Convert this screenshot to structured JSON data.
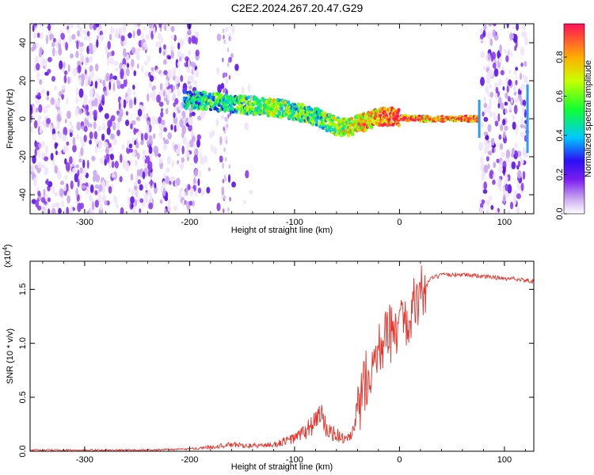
{
  "title": "C2E2.2024.267.20.47.G29",
  "colors": {
    "snr_line": "#e8322a",
    "axis": "#000000"
  },
  "chart_data": [
    {
      "type": "heatmap",
      "xlabel": "Height of straight line (km)",
      "ylabel": "Frequency (Hz)",
      "xlim": [
        -352,
        128
      ],
      "ylim": [
        -50,
        50
      ],
      "x_ticks": [
        -300,
        -200,
        -100,
        0,
        100
      ],
      "y_ticks": [
        -40,
        -20,
        0,
        20,
        40
      ],
      "colorbar": {
        "label": "Normalized spectral amplitude",
        "range": [
          0.0,
          0.97
        ],
        "ticks": [
          "0.0",
          "0.2",
          "0.4",
          "0.6",
          "0.8"
        ],
        "tick_values": [
          0.0,
          0.2,
          0.4,
          0.6,
          0.8
        ]
      },
      "noise_regions": [
        {
          "x": [
            -352,
            -190
          ],
          "level": "dense"
        },
        {
          "x": [
            -190,
            -140
          ],
          "level": "sparse"
        },
        {
          "x": [
            77,
            122
          ],
          "level": "dense"
        }
      ],
      "signal_track": {
        "height_km": [
          -200,
          -180,
          -160,
          -140,
          -120,
          -100,
          -80,
          -60,
          -50,
          -40,
          -30,
          -20,
          -10,
          0,
          10,
          20,
          40,
          60,
          75
        ],
        "frequency_hz": [
          10,
          9,
          8,
          7,
          6,
          4,
          1,
          -4,
          -5,
          -3,
          -1,
          1,
          1,
          1,
          0,
          0,
          0,
          0,
          0
        ],
        "amplitude": [
          0.4,
          0.5,
          0.5,
          0.55,
          0.6,
          0.55,
          0.5,
          0.6,
          0.65,
          0.7,
          0.8,
          0.85,
          0.9,
          0.95,
          0.9,
          0.85,
          0.85,
          0.85,
          0.85
        ]
      }
    },
    {
      "type": "line",
      "xlabel": "Height of straight line (km)",
      "ylabel": "SNR (10 * v/v)",
      "y_multiplier": "(x10",
      "y_multiplier_exp": "4",
      "xlim": [
        -352,
        128
      ],
      "ylim": [
        0,
        1.76
      ],
      "x_ticks": [
        -300,
        -200,
        -100,
        0,
        100
      ],
      "y_ticks": [
        "0.0",
        "0.5",
        "1.0",
        "1.5"
      ],
      "y_tick_values": [
        0,
        0.5,
        1.0,
        1.5
      ],
      "series": [
        {
          "x": [
            -352,
            -250,
            -200,
            -180,
            -160,
            -140,
            -120,
            -100,
            -90,
            -80,
            -75,
            -70,
            -60,
            -50,
            -45,
            -40,
            -35,
            -30,
            -20,
            -10,
            -5,
            0,
            10,
            20,
            30,
            40,
            60,
            80,
            100,
            110,
            128
          ],
          "y": [
            0.01,
            0.01,
            0.02,
            0.04,
            0.06,
            0.05,
            0.06,
            0.12,
            0.18,
            0.28,
            0.35,
            0.2,
            0.15,
            0.1,
            0.15,
            0.35,
            0.55,
            0.75,
            0.95,
            1.1,
            1.05,
            1.15,
            1.3,
            1.45,
            1.6,
            1.63,
            1.64,
            1.62,
            1.6,
            1.6,
            1.57
          ]
        }
      ]
    }
  ]
}
